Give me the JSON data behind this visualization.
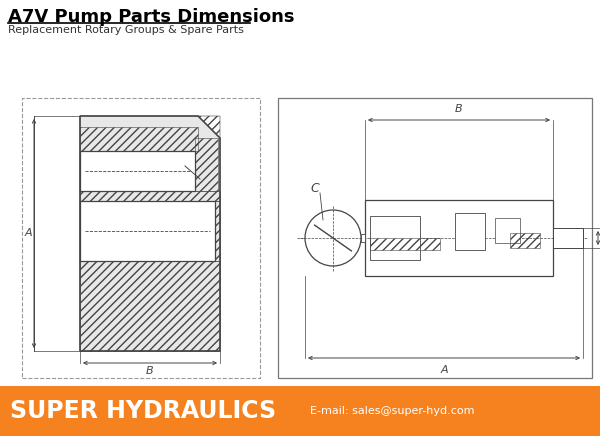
{
  "title": "A7V Pump Parts Dimensions",
  "subtitle": "Replacement Rotary Groups & Spare Parts",
  "footer_text": "SUPER HYDRAULICS",
  "footer_email": "E-mail: sales@super-hyd.com",
  "footer_bg": "#F5821E",
  "footer_text_color": "#FFFFFF",
  "bg_color": "#FFFFFF",
  "lc": "#444444",
  "lc_light": "#888888",
  "title_fontsize": 13,
  "subtitle_fontsize": 8,
  "dim_fontsize": 8,
  "footer_main_fontsize": 17,
  "footer_email_fontsize": 8
}
